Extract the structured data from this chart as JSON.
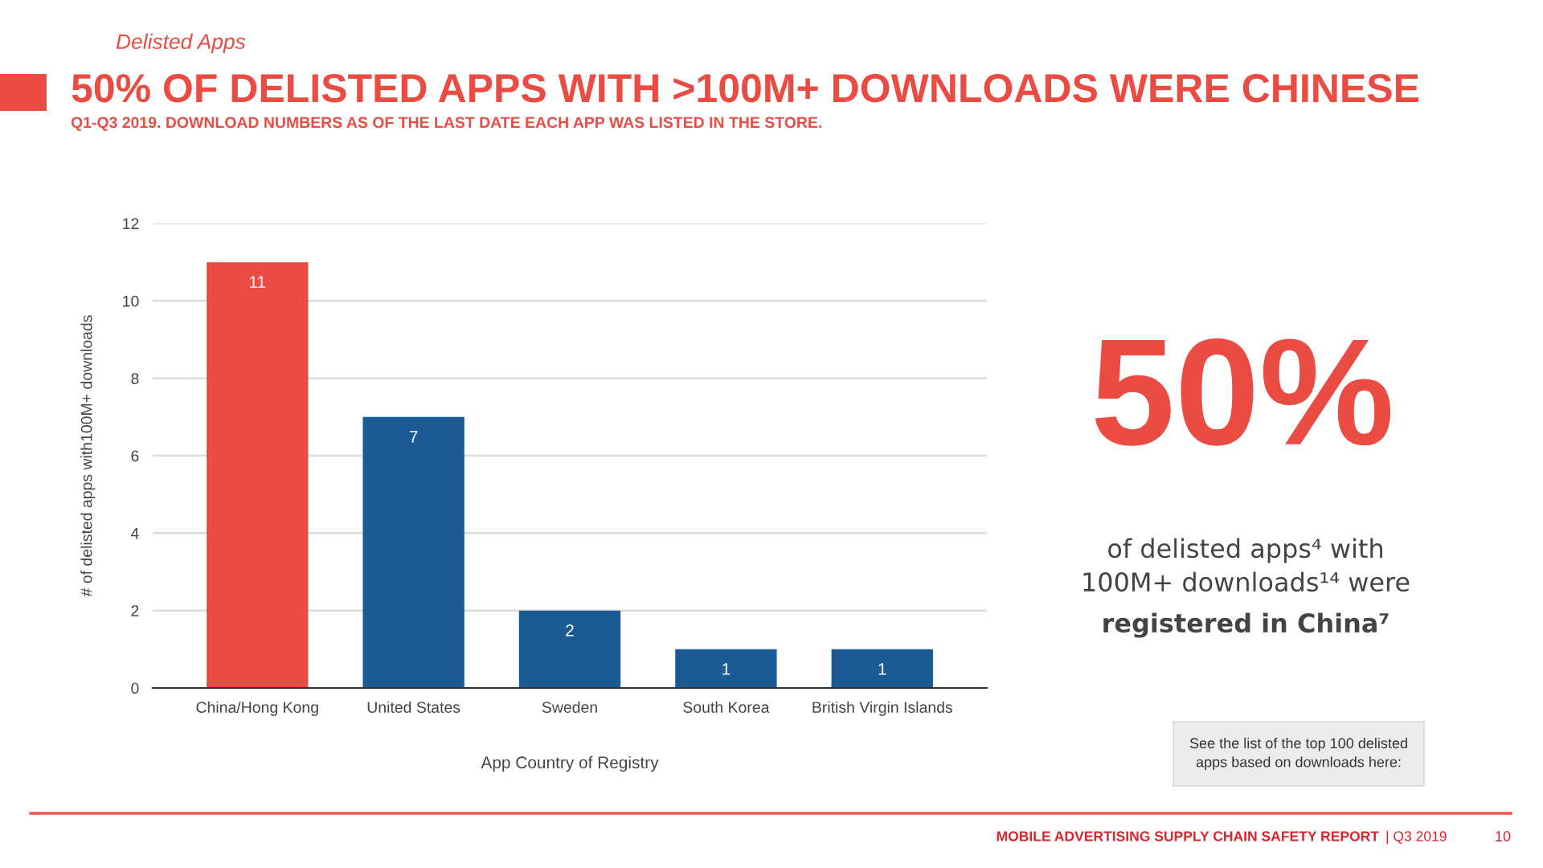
{
  "chart_data": {
    "type": "bar",
    "title": "50% OF DELISTED APPS WITH >100M+ DOWNLOADS WERE CHINESE",
    "subtitle": "Q1-Q3 2019. DOWNLOAD NUMBERS AS OF THE LAST DATE EACH APP WAS LISTED IN THE STORE.",
    "xlabel": "App Country of Registry",
    "ylabel": "# of delisted apps with100M+ downloads",
    "categories": [
      "China/Hong Kong",
      "United States",
      "Sweden",
      "South Korea",
      "British Virgin Islands"
    ],
    "values": [
      11,
      7,
      2,
      1,
      1
    ],
    "colors": [
      "#ea4b42",
      "#1a5b96",
      "#1a5b96",
      "#1a5b96",
      "#1a5b96"
    ],
    "ylim": [
      0,
      12
    ],
    "yticks": [
      0,
      2,
      4,
      6,
      8,
      10,
      12
    ],
    "grid": "y",
    "data_labels": true,
    "annotations": [
      "Delisted Apps",
      "50%",
      "of delisted apps⁴ with\n100M+ downloads¹⁴ were",
      "registered in China⁷",
      "See the list of the top 100 delisted\napps based on downloads here:",
      "MOBILE ADVERTISING SUPPLY CHAIN SAFETY REPORT",
      "| Q3 2019",
      "10"
    ]
  }
}
